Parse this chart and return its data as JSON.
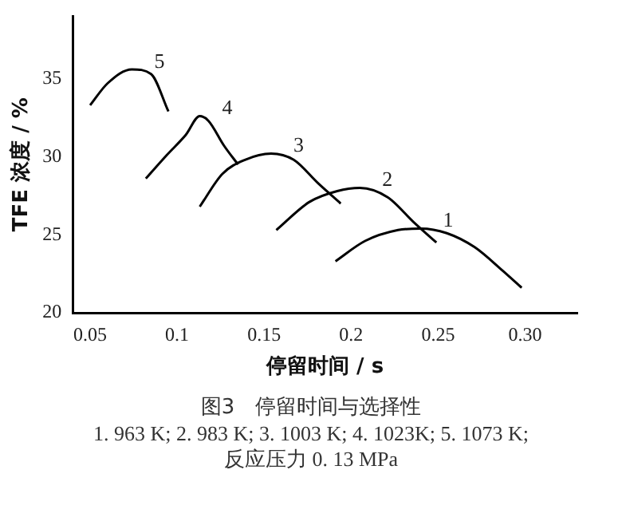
{
  "chart_data": {
    "type": "line",
    "title": "图3　停留时间与选择性",
    "xlabel": "停留时间 / s",
    "ylabel": "TFE 浓度 / %",
    "xlim": [
      0.04,
      0.33
    ],
    "xticks": [
      0.05,
      0.1,
      0.15,
      0.2,
      0.25,
      {
        "value": 0.3,
        "label": "0.30"
      }
    ],
    "ylim": [
      20,
      39
    ],
    "yticks": [
      20,
      25,
      30,
      35
    ],
    "grid": false,
    "legend": false,
    "marker": "none",
    "line_style": "solid",
    "series": [
      {
        "name": "1",
        "color": "#000000",
        "x": [
          0.191,
          0.208,
          0.227,
          0.24,
          0.255,
          0.271,
          0.287,
          0.298
        ],
        "values": [
          23.3,
          24.6,
          25.3,
          25.4,
          25.1,
          24.2,
          22.7,
          21.6
        ]
      },
      {
        "name": "2",
        "color": "#000000",
        "x": [
          0.157,
          0.176,
          0.192,
          0.205,
          0.221,
          0.236,
          0.249
        ],
        "values": [
          25.3,
          27.1,
          27.8,
          28.0,
          27.4,
          25.8,
          24.5
        ]
      },
      {
        "name": "3",
        "color": "#000000",
        "x": [
          0.113,
          0.126,
          0.139,
          0.154,
          0.167,
          0.181,
          0.194
        ],
        "values": [
          26.8,
          28.9,
          29.8,
          30.2,
          29.8,
          28.3,
          27.0
        ]
      },
      {
        "name": "4",
        "color": "#000000",
        "x": [
          0.082,
          0.094,
          0.105,
          0.113,
          0.118,
          0.127,
          0.135
        ],
        "values": [
          28.6,
          30.1,
          31.4,
          32.6,
          32.3,
          30.7,
          29.5
        ]
      },
      {
        "name": "5",
        "color": "#000000",
        "x": [
          0.05,
          0.06,
          0.074,
          0.085,
          0.095
        ],
        "values": [
          33.3,
          34.7,
          35.6,
          35.3,
          32.9
        ]
      }
    ],
    "annotations": [
      "1. 963 K; 2. 983 K; 3. 1003 K; 4. 1023K; 5. 1073 K;",
      "反应压力 0. 13 MPa"
    ]
  }
}
